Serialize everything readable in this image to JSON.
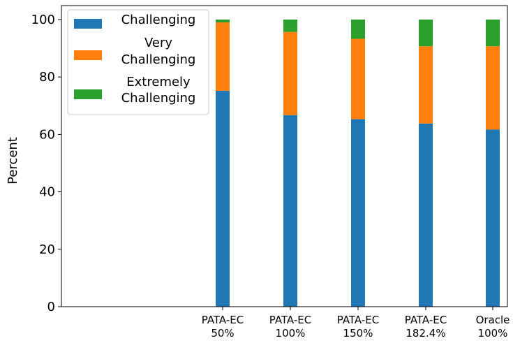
{
  "chart_data": {
    "type": "bar",
    "stacked": true,
    "title": "",
    "xlabel": "",
    "ylabel": "Percent",
    "ylim": [
      0,
      100
    ],
    "yticks": [
      0,
      20,
      40,
      60,
      80,
      100
    ],
    "grid": false,
    "legend_position": "top-left",
    "categories": [
      [
        "PATA-EC",
        "50%"
      ],
      [
        "PATA-EC",
        "100%"
      ],
      [
        "PATA-EC",
        "150%"
      ],
      [
        "PATA-EC",
        "182.4%"
      ],
      [
        "Oracle",
        "100%"
      ]
    ],
    "series": [
      {
        "name": [
          "Challenging"
        ],
        "color": "#1f77b4",
        "values": [
          75.2,
          66.7,
          65.3,
          63.8,
          61.7
        ]
      },
      {
        "name": [
          "Very",
          "Challenging"
        ],
        "color": "#ff7f0e",
        "values": [
          23.8,
          29.0,
          28.0,
          26.9,
          29.0
        ]
      },
      {
        "name": [
          "Extremely",
          "Challenging"
        ],
        "color": "#2ca02c",
        "values": [
          1.0,
          4.3,
          6.7,
          9.3,
          9.3
        ]
      }
    ]
  }
}
